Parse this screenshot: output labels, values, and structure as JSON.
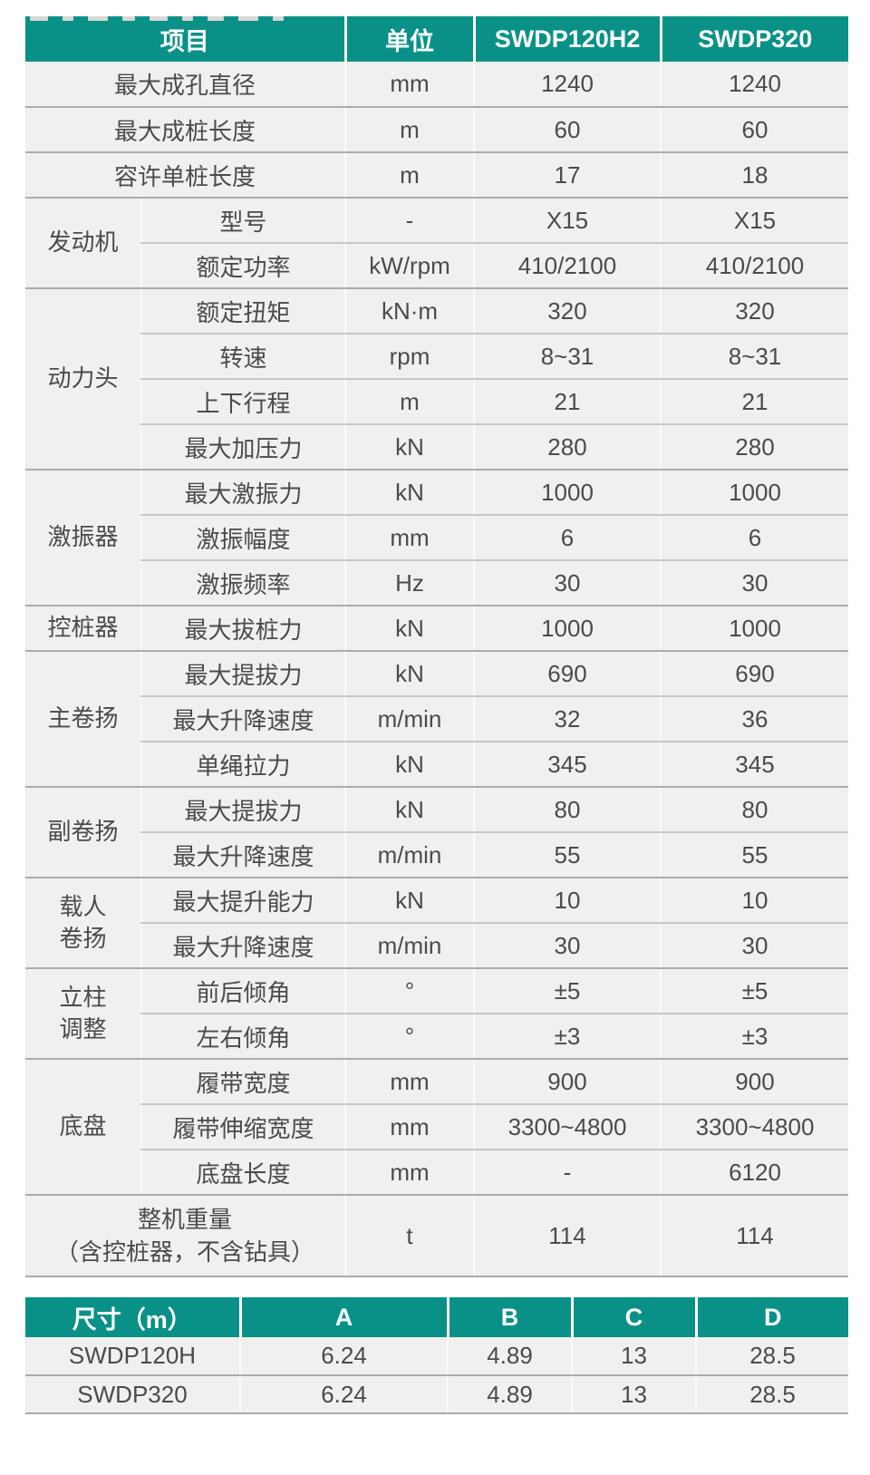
{
  "colors": {
    "header_teal": "#0a9187",
    "row_background": "#f0f0ee",
    "body_text": "#4a4b4b",
    "group_separator_line": "#a9adac",
    "inner_separator_line": "#c6c9c8",
    "header_divider_white": "#ffffff"
  },
  "spec_table": {
    "columns": [
      "项目",
      "单位",
      "SWDP120H2",
      "SWDP320"
    ],
    "groups": [
      {
        "label": null,
        "rows": [
          {
            "item": "最大成孔直径",
            "unit": "mm",
            "values": [
              "1240",
              "1240"
            ]
          }
        ]
      },
      {
        "label": null,
        "rows": [
          {
            "item": "最大成桩长度",
            "unit": "m",
            "values": [
              "60",
              "60"
            ]
          }
        ]
      },
      {
        "label": null,
        "rows": [
          {
            "item": "容许单桩长度",
            "unit": "m",
            "values": [
              "17",
              "18"
            ]
          }
        ]
      },
      {
        "label": "发动机",
        "rows": [
          {
            "item": "型号",
            "unit": "-",
            "values": [
              "X15",
              "X15"
            ]
          },
          {
            "item": "额定功率",
            "unit": "kW/rpm",
            "values": [
              "410/2100",
              "410/2100"
            ]
          }
        ]
      },
      {
        "label": "动力头",
        "rows": [
          {
            "item": "额定扭矩",
            "unit": "kN·m",
            "values": [
              "320",
              "320"
            ]
          },
          {
            "item": "转速",
            "unit": "rpm",
            "values": [
              "8~31",
              "8~31"
            ]
          },
          {
            "item": "上下行程",
            "unit": "m",
            "values": [
              "21",
              "21"
            ]
          },
          {
            "item": "最大加压力",
            "unit": "kN",
            "values": [
              "280",
              "280"
            ]
          }
        ]
      },
      {
        "label": "激振器",
        "rows": [
          {
            "item": "最大激振力",
            "unit": "kN",
            "values": [
              "1000",
              "1000"
            ]
          },
          {
            "item": "激振幅度",
            "unit": "mm",
            "values": [
              "6",
              "6"
            ]
          },
          {
            "item": "激振频率",
            "unit": "Hz",
            "values": [
              "30",
              "30"
            ]
          }
        ]
      },
      {
        "label": "控桩器",
        "rows": [
          {
            "item": "最大拔桩力",
            "unit": "kN",
            "values": [
              "1000",
              "1000"
            ]
          }
        ]
      },
      {
        "label": "主卷扬",
        "rows": [
          {
            "item": "最大提拔力",
            "unit": "kN",
            "values": [
              "690",
              "690"
            ]
          },
          {
            "item": "最大升降速度",
            "unit": "m/min",
            "values": [
              "32",
              "36"
            ]
          },
          {
            "item": "单绳拉力",
            "unit": "kN",
            "values": [
              "345",
              "345"
            ]
          }
        ]
      },
      {
        "label": "副卷扬",
        "rows": [
          {
            "item": "最大提拔力",
            "unit": "kN",
            "values": [
              "80",
              "80"
            ]
          },
          {
            "item": "最大升降速度",
            "unit": "m/min",
            "values": [
              "55",
              "55"
            ]
          }
        ]
      },
      {
        "label": "载人\n卷扬",
        "rows": [
          {
            "item": "最大提升能力",
            "unit": "kN",
            "values": [
              "10",
              "10"
            ]
          },
          {
            "item": "最大升降速度",
            "unit": "m/min",
            "values": [
              "30",
              "30"
            ]
          }
        ]
      },
      {
        "label": "立柱\n调整",
        "rows": [
          {
            "item": "前后倾角",
            "unit": "°",
            "values": [
              "±5",
              "±5"
            ]
          },
          {
            "item": "左右倾角",
            "unit": "°",
            "values": [
              "±3",
              "±3"
            ]
          }
        ]
      },
      {
        "label": "底盘",
        "rows": [
          {
            "item": "履带宽度",
            "unit": "mm",
            "values": [
              "900",
              "900"
            ]
          },
          {
            "item": "履带伸缩宽度",
            "unit": "mm",
            "values": [
              "3300~4800",
              "3300~4800"
            ]
          },
          {
            "item": "底盘长度",
            "unit": "mm",
            "values": [
              "-",
              "6120"
            ]
          }
        ]
      },
      {
        "label": null,
        "rows": [
          {
            "item": "整机重量\n（含控桩器，不含钻具）",
            "unit": "t",
            "values": [
              "114",
              "114"
            ],
            "tall": true
          }
        ]
      }
    ]
  },
  "dim_table": {
    "columns": [
      "尺寸（m）",
      "A",
      "B",
      "C",
      "D"
    ],
    "rows": [
      {
        "model": "SWDP120H",
        "values": [
          "6.24",
          "4.89",
          "13",
          "28.5"
        ]
      },
      {
        "model": "SWDP320",
        "values": [
          "6.24",
          "4.89",
          "13",
          "28.5"
        ]
      }
    ]
  }
}
